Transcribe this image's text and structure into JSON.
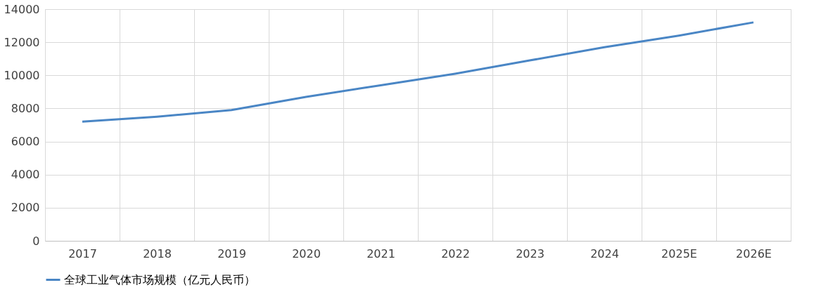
{
  "chart_data": {
    "type": "line",
    "categories": [
      "2017",
      "2018",
      "2019",
      "2020",
      "2021",
      "2022",
      "2023",
      "2024",
      "2025E",
      "2026E"
    ],
    "series": [
      {
        "name": "全球工业气体市场规模（亿元人民币）",
        "color": "#4a86c5",
        "values": [
          7200,
          7500,
          7900,
          8700,
          9400,
          10100,
          10900,
          11700,
          12400,
          13200
        ]
      }
    ],
    "ylim": [
      0,
      14000
    ],
    "yticks": [
      0,
      2000,
      4000,
      6000,
      8000,
      10000,
      12000,
      14000
    ],
    "grid": true,
    "legend": "bottom",
    "marker": "none",
    "line_style": "solid"
  }
}
